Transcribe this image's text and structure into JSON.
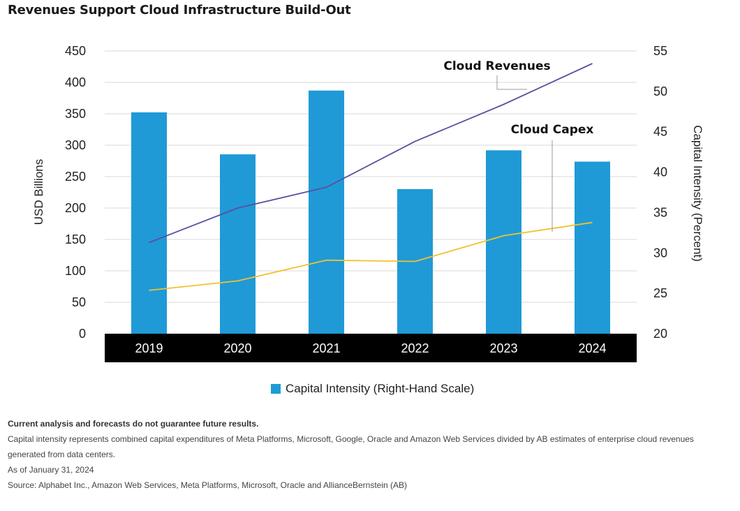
{
  "title": "Revenues Support Cloud Infrastructure Build-Out",
  "chart_data": {
    "type": "bar",
    "categories": [
      "2019",
      "2020",
      "2021",
      "2022",
      "2023",
      "2024"
    ],
    "series": [
      {
        "name": "Capital Intensity (Right-Hand Scale)",
        "type": "bar",
        "axis": "right",
        "values": [
          47.4,
          42.2,
          50.1,
          37.9,
          42.7,
          41.3
        ],
        "color": "#1f9ad6"
      },
      {
        "name": "Cloud Revenues",
        "type": "line",
        "axis": "left",
        "values": [
          145,
          200,
          233,
          306,
          365,
          430
        ],
        "color": "#5a4fa0"
      },
      {
        "name": "Cloud Capex",
        "type": "line",
        "axis": "left",
        "values": [
          69,
          84,
          117,
          115,
          156,
          177
        ],
        "color": "#f2c12e"
      }
    ],
    "ylabel": "USD Billions",
    "ylim": [
      0,
      450
    ],
    "yticks": [
      "0",
      "50",
      "100",
      "150",
      "200",
      "250",
      "300",
      "350",
      "400",
      "450"
    ],
    "y2label": "Capital Intensity (Percent)",
    "y2lim": [
      20,
      55
    ],
    "y2ticks": [
      "20",
      "25",
      "30",
      "35",
      "40",
      "45",
      "50",
      "55"
    ],
    "grid": true,
    "legend_position": "bottom-center"
  },
  "legend": {
    "label": "Capital Intensity (Right-Hand Scale)"
  },
  "footnotes": {
    "disclaimer": "Current analysis and forecasts do not guarantee future results.",
    "definition": "Capital intensity represents combined capital expenditures of Meta Platforms, Microsoft, Google, Oracle and Amazon Web Services divided by AB estimates of enterprise cloud revenues generated from data centers.",
    "as_of": "As of January 31, 2024",
    "source": "Source: Alphabet Inc., Amazon Web Services, Meta Platforms, Microsoft, Oracle and AllianceBernstein (AB)"
  }
}
